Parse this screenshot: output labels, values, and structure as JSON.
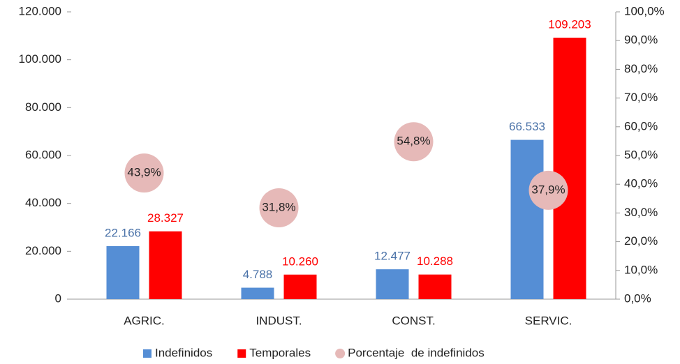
{
  "chart_data": {
    "type": "bar",
    "categories": [
      "AGRIC.",
      "INDUST.",
      "CONST.",
      "SERVIC."
    ],
    "series": [
      {
        "name": "Indefinidos",
        "color": "#558ed5",
        "label_color": "#4a72a8",
        "values": [
          22166,
          4788,
          12477,
          66533
        ],
        "value_labels": [
          "22.166",
          "4.788",
          "12.477",
          "66.533"
        ]
      },
      {
        "name": "Temporales",
        "color": "#ff0000",
        "label_color": "#ff0000",
        "values": [
          28327,
          10260,
          10288,
          109203
        ],
        "value_labels": [
          "28.327",
          "10.260",
          "10.288",
          "109.203"
        ]
      },
      {
        "name": "Porcentaje  de indefinidos",
        "type": "scatter",
        "axis": "y2",
        "color": "#e6b9b8",
        "values": [
          43.9,
          31.8,
          54.8,
          37.9
        ],
        "value_labels": [
          "43,9%",
          "31,8%",
          "54,8%",
          "37,9%"
        ]
      }
    ],
    "ylim": [
      0,
      120000
    ],
    "yticks": [
      {
        "value": 0,
        "label": "0"
      },
      {
        "value": 20000,
        "label": "20.000"
      },
      {
        "value": 40000,
        "label": "40.000"
      },
      {
        "value": 60000,
        "label": "60.000"
      },
      {
        "value": 80000,
        "label": "80.000"
      },
      {
        "value": 100000,
        "label": "100.000"
      },
      {
        "value": 120000,
        "label": "120.000"
      }
    ],
    "y2lim": [
      0,
      100
    ],
    "y2ticks": [
      {
        "value": 0,
        "label": "0,0%"
      },
      {
        "value": 10,
        "label": "10,0%"
      },
      {
        "value": 20,
        "label": "20,0%"
      },
      {
        "value": 30,
        "label": "30,0%"
      },
      {
        "value": 40,
        "label": "40,0%"
      },
      {
        "value": 50,
        "label": "50,0%"
      },
      {
        "value": 60,
        "label": "60,0%"
      },
      {
        "value": 70,
        "label": "70,0%"
      },
      {
        "value": 80,
        "label": "80,0%"
      },
      {
        "value": 90,
        "label": "90,0%"
      },
      {
        "value": 100,
        "label": "100,0%"
      }
    ],
    "legend": "bottom"
  }
}
